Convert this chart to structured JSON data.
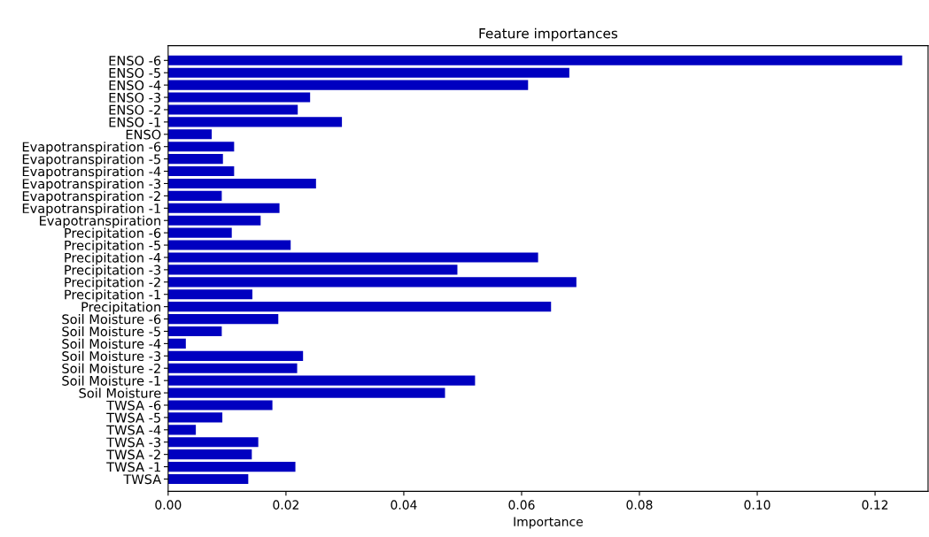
{
  "chart_data": {
    "type": "bar",
    "orientation": "horizontal",
    "title": "Feature importances",
    "xlabel": "Importance",
    "categories": [
      "ENSO -6",
      "ENSO -5",
      "ENSO -4",
      "ENSO -3",
      "ENSO -2",
      "ENSO -1",
      "ENSO",
      "Evapotranspiration -6",
      "Evapotranspiration -5",
      "Evapotranspiration -4",
      "Evapotranspiration -3",
      "Evapotranspiration -2",
      "Evapotranspiration -1",
      "Evapotranspiration",
      "Precipitation -6",
      "Precipitation -5",
      "Precipitation -4",
      "Precipitation -3",
      "Precipitation -2",
      "Precipitation -1",
      "Precipitation",
      "Soil Moisture -6",
      "Soil Moisture -5",
      "Soil Moisture -4",
      "Soil Moisture -3",
      "Soil Moisture -2",
      "Soil Moisture -1",
      "Soil Moisture",
      "TWSA -6",
      "TWSA -5",
      "TWSA -4",
      "TWSA -3",
      "TWSA -2",
      "TWSA -1",
      "TWSA"
    ],
    "values": [
      0.1246,
      0.0681,
      0.0611,
      0.0241,
      0.022,
      0.0295,
      0.0074,
      0.0112,
      0.0093,
      0.0112,
      0.0251,
      0.0091,
      0.0189,
      0.0157,
      0.0108,
      0.0208,
      0.0628,
      0.0491,
      0.0693,
      0.0143,
      0.065,
      0.0187,
      0.0091,
      0.003,
      0.0229,
      0.0219,
      0.0521,
      0.047,
      0.0177,
      0.0092,
      0.0047,
      0.0153,
      0.0142,
      0.0216,
      0.0136
    ],
    "color": "#0000c0",
    "xlim": [
      0,
      0.129
    ],
    "xticks": [
      {
        "value": 0,
        "label": "0.00"
      },
      {
        "value": 0.02,
        "label": "0.02"
      },
      {
        "value": 0.04,
        "label": "0.04"
      },
      {
        "value": 0.06,
        "label": "0.06"
      },
      {
        "value": 0.08,
        "label": "0.08"
      },
      {
        "value": 0.1,
        "label": "0.10"
      },
      {
        "value": 0.12,
        "label": "0.12"
      }
    ],
    "grid": false,
    "legend": false
  }
}
